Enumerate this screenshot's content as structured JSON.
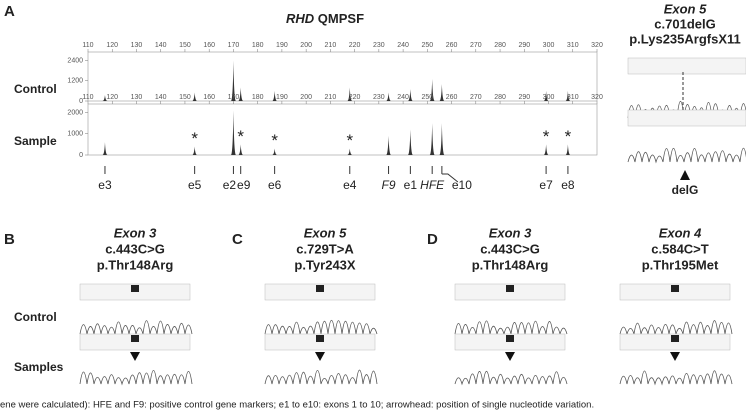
{
  "panel_a": {
    "letter": "A",
    "title_gene": "RHD",
    "title_rest": "QMPSF",
    "xlim": [
      110,
      320
    ],
    "xticks": [
      110,
      120,
      130,
      140,
      150,
      160,
      170,
      180,
      190,
      200,
      210,
      220,
      230,
      240,
      250,
      260,
      270,
      280,
      290,
      300,
      310,
      320
    ],
    "control": {
      "label": "Control",
      "ylim": [
        0,
        2900
      ],
      "yticks": [
        0,
        1200,
        2400
      ]
    },
    "sample": {
      "label": "Sample",
      "ylim": [
        0,
        2400
      ],
      "yticks": [
        0,
        1000,
        2000
      ]
    },
    "peaks": [
      {
        "x": 117,
        "control": 350,
        "sample": 600,
        "label": "e3"
      },
      {
        "x": 154,
        "control": 500,
        "sample": 400,
        "label": "e5",
        "marker": "*"
      },
      {
        "x": 170,
        "control": 2400,
        "sample": 2100,
        "label": "e2"
      },
      {
        "x": 173,
        "control": 800,
        "sample": 500,
        "label": "e9",
        "marker": "*"
      },
      {
        "x": 187,
        "control": 600,
        "sample": 300,
        "label": "e6",
        "marker": "*"
      },
      {
        "x": 218,
        "control": 800,
        "sample": 300,
        "label": "e4",
        "marker": "*"
      },
      {
        "x": 234,
        "control": 500,
        "sample": 900,
        "label": "F9"
      },
      {
        "x": 243,
        "control": 700,
        "sample": 1200,
        "label": "e1"
      },
      {
        "x": 252,
        "control": 1300,
        "sample": 1500,
        "label": "HFE"
      },
      {
        "x": 256,
        "control": 1000,
        "sample": 1500,
        "label": "e10"
      },
      {
        "x": 299,
        "control": 600,
        "sample": 500,
        "label": "e7",
        "marker": "*"
      },
      {
        "x": 308,
        "control": 600,
        "sample": 500,
        "label": "e8",
        "marker": "*"
      }
    ]
  },
  "panel_a_right": {
    "exon": "Exon 5",
    "variant": "c.701delG",
    "protein": "p.Lys235ArgfsX11",
    "arrow_label": "delG"
  },
  "panels": [
    {
      "letter": "B",
      "exon": "Exon 3",
      "variant": "c.443C>G",
      "protein": "p.Thr148Arg"
    },
    {
      "letter": "C",
      "exon": "Exon 5",
      "variant": "c.729T>A",
      "protein": "p.Tyr243X"
    },
    {
      "letter": "D",
      "exon": "Exon 3",
      "variant": "c.443C>G",
      "protein": "p.Thr148Arg"
    },
    {
      "letter": null,
      "exon": "Exon 4",
      "variant": "c.584C>T",
      "protein": "p.Thr195Met"
    }
  ],
  "row_labels": {
    "control": "Control",
    "samples": "Samples"
  },
  "caption": "ene were calculated): HFE and F9: positive control gene markers; e1 to e10: exons 1 to 10; arrowhead: position of single nucleotide variation."
}
